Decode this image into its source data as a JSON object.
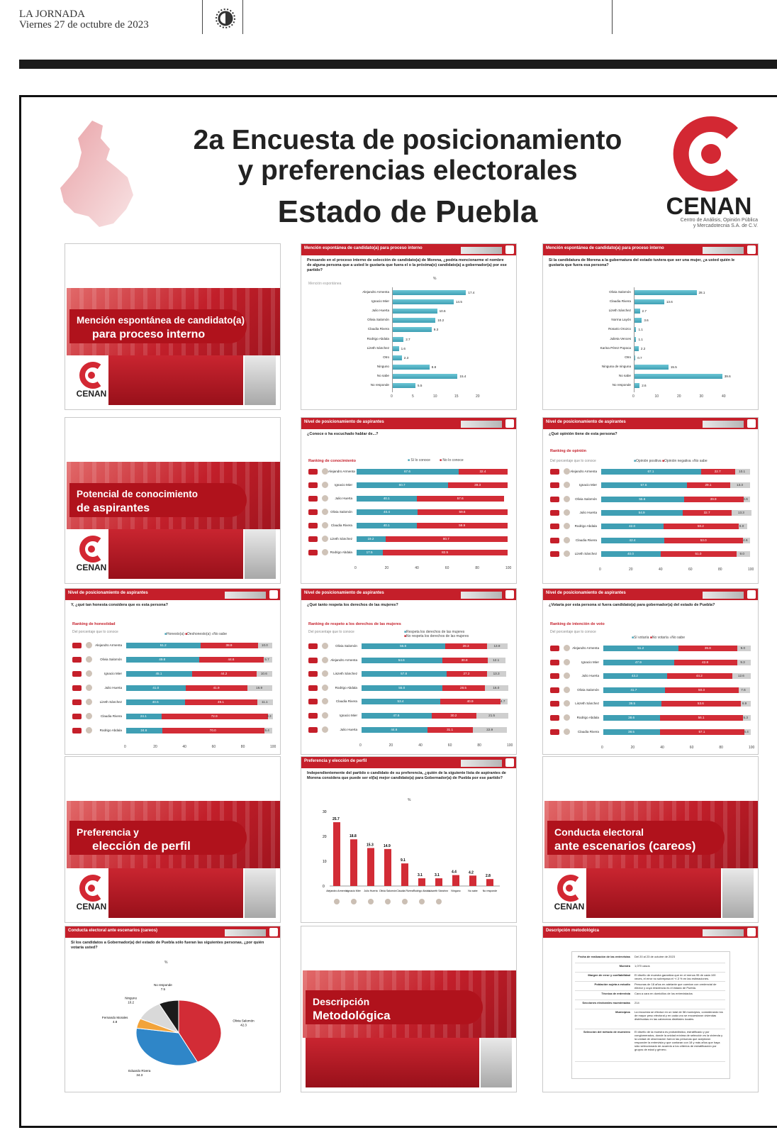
{
  "masthead": {
    "publication": "LA JORNADA",
    "date": "Viernes 27 de octubre de 2023"
  },
  "title": {
    "line1": "2a Encuesta de posicionamiento",
    "line2": "y preferencias electorales",
    "line3": "Estado de Puebla"
  },
  "brand": {
    "name": "CENAN",
    "subtitle_line1": "Centro de Análisis, Opinión Pública",
    "subtitle_line2": "y Mercadotecnia S.A. de C.V."
  },
  "colors": {
    "brand_red": "#c51f2a",
    "teal": "#3f9fb4",
    "gray": "#cfcfcf"
  },
  "section_slides": {
    "s1": {
      "line1": "Mención espontánea de candidato(a)",
      "line2": "para proceso interno"
    },
    "s2": {
      "line1": "Potencial de conocimiento",
      "line2": "de aspirantes"
    },
    "s3": {
      "line1": "Preferencia y",
      "line2": "elección de perfil"
    },
    "s4": {
      "line1": "Conducta electoral",
      "line2": "ante escenarios (careos)"
    },
    "s5": {
      "line1": "Descripción",
      "line2": "Metodológica"
    }
  },
  "slide_mencion_a": {
    "header": "Mención espontánea de candidato(a) para proceso interno",
    "question": "Pensando en el proceso interno de selección de candidato(a) de Morena, ¿podría mencionarme el nombre de alguna persona que a usted le gustaría que fuera el o la próxima(o) candidato(a) a gobernador(a) por ese partido?",
    "sub": "Mención espontánea",
    "unit": "%",
    "chart_data": {
      "type": "bar",
      "orientation": "horizontal",
      "categories": [
        "Alejandro Armenta",
        "Ignacio Mier",
        "Julio Huerta",
        "Olivia Salomón",
        "Claudia Rivera",
        "Rodrigo Abdala",
        "Lizeth Sánchez",
        "Otro",
        "Ninguno",
        "No sabe",
        "No responde"
      ],
      "values": [
        17.4,
        14.5,
        10.6,
        10.2,
        9.3,
        2.7,
        1.6,
        2.3,
        8.8,
        15.4,
        5.5
      ],
      "xlim": [
        0,
        20
      ],
      "xticks": [
        0,
        5,
        10,
        15,
        20
      ]
    }
  },
  "slide_mencion_b": {
    "header": "Mención espontánea de candidato(a) para proceso interno",
    "question": "Si la candidatura de Morena a la gubernatura del estado tuviera que ser una mujer, ¿a usted quién le gustaría que fuera esa persona?",
    "chart_data": {
      "type": "bar",
      "orientation": "horizontal",
      "categories": [
        "Olivia Salomón",
        "Claudia Rivera",
        "Lizeth Sánchez",
        "Norma Layón",
        "Rosario Orozco",
        "Julieta Vences",
        "Karina Pérez Popoca",
        "Otro",
        "Ninguna de ninguna",
        "No sabe",
        "No responde"
      ],
      "values": [
        28.1,
        13.6,
        2.7,
        3.6,
        1.1,
        1.1,
        2.2,
        0.7,
        15.5,
        39.6,
        2.6
      ],
      "xlim": [
        0,
        40
      ]
    }
  },
  "slide_conoc": {
    "header": "Nivel de posicionamiento de aspirantes",
    "question": "¿Conoce o ha escuchado hablar de...?",
    "ranking": "Ranking de conocimiento",
    "legend": [
      "Sí lo conoce",
      "No lo conoce"
    ],
    "chart_data": {
      "type": "bar",
      "stacked": true,
      "categories": [
        "Alejandro Armenta",
        "Ignacio Mier",
        "Julio Huerta",
        "Olivia Salomón",
        "Claudia Rivera",
        "Lizeth Sánchez",
        "Rodrigo Abdala"
      ],
      "series": [
        {
          "name": "Sí lo conoce",
          "values": [
            67.6,
            60.7,
            40.1,
            40.4,
            40.1,
            19.2,
            17.5
          ]
        },
        {
          "name": "No lo conoce",
          "values": [
            32.4,
            39.3,
            57.6,
            59.6,
            59.9,
            80.7,
            82.5
          ]
        }
      ],
      "xticks": [
        0,
        20,
        40,
        60,
        80,
        100
      ]
    }
  },
  "slide_opinion": {
    "header": "Nivel de posicionamiento de aspirantes",
    "question": "¿Qué opinión tiene de esta persona?",
    "ranking": "Ranking de opinión",
    "sub": "Del porcentaje que lo conoce",
    "legend": [
      "Opinión positiva",
      "Opinión negativa",
      "No sabe"
    ],
    "chart_data": {
      "type": "bar",
      "stacked": true,
      "categories": [
        "Alejandro Armenta",
        "Ignacio Mier",
        "Olivia Salomón",
        "Julio Huerta",
        "Rodrigo Abdala",
        "Claudia Rivera",
        "Lizeth Sánchez"
      ],
      "series": [
        {
          "name": "Opinión positiva",
          "values": [
            67.1,
            57.6,
            55.6,
            54.9,
            42.0,
            42.4,
            40.0
          ]
        },
        {
          "name": "Opinión negativa",
          "values": [
            22.7,
            29.1,
            39.9,
            32.7,
            50.2,
            53.0,
            51.0
          ]
        },
        {
          "name": "No sabe",
          "values": [
            10.1,
            13.3,
            4.6,
            13.3,
            6.0,
            4.6,
            9.0
          ]
        }
      ]
    }
  },
  "slide_honestidad": {
    "header": "Nivel de posicionamiento de aspirantes",
    "question": "Y, ¿qué tan honesta considera que es esta persona?",
    "ranking": "Ranking de honestidad",
    "sub": "Del porcentaje que lo conoce",
    "legend": [
      "Honesto(a)",
      "Deshonesto(a)",
      "No sabe"
    ],
    "chart_data": {
      "type": "bar",
      "stacked": true,
      "categories": [
        "Alejandro Armenta",
        "Olivia Salomón",
        "Ignacio Mier",
        "Julio Huerta",
        "Lizeth Sánchez",
        "Claudia Rivera",
        "Rodrigo Abdala"
      ],
      "series": [
        {
          "name": "Honesto(a)",
          "values": [
            51.2,
            49.8,
            45.1,
            41.0,
            40.5,
            24.1,
            24.6
          ]
        },
        {
          "name": "Deshonesto(a)",
          "values": [
            38.9,
            44.6,
            44.2,
            41.9,
            49.1,
            72.9,
            70.0
          ]
        },
        {
          "name": "No sabe",
          "values": [
            10.0,
            5.7,
            10.6,
            16.9,
            11.1,
            3.3,
            5.4
          ]
        }
      ]
    }
  },
  "slide_mujeres": {
    "header": "Nivel de posicionamiento de aspirantes",
    "question": "¿Qué tanto respeta los derechos de las mujeres?",
    "ranking": "Ranking de respeto a los derechos de las mujeres",
    "sub": "Del porcentaje que lo conoce",
    "legend": [
      "Respeta los derechos de las mujeres",
      "No respeta los derechos de las mujeres"
    ],
    "chart_data": {
      "type": "bar",
      "stacked": true,
      "categories": [
        "Olivia Salomón",
        "Alejandro Armenta",
        "Liszeth Sánchez",
        "Rodrigo Abdala",
        "Claudia Rivera",
        "Ignacio Mier",
        "Julio Huerta"
      ],
      "series": [
        {
          "name": "Respeta los derechos de las mujeres",
          "values": [
            56.8,
            54.6,
            57.8,
            55.0,
            53.4,
            47.6,
            44.6
          ]
        },
        {
          "name": "No respeta los derechos de las mujeres",
          "values": [
            28.3,
            30.8,
            27.2,
            28.5,
            40.9,
            30.2,
            31.1
          ]
        },
        {
          "name": "No sabe",
          "values": [
            13.9,
            12.1,
            13.3,
            16.0,
            4.7,
            21.5,
            22.9
          ]
        }
      ]
    }
  },
  "slide_voto": {
    "header": "Nivel de posicionamiento de aspirantes",
    "question": "¿Votaría por esta persona si fuera candidato(a) para gobernador(a) del estado de Puebla?",
    "ranking": "Ranking de intención de voto",
    "sub": "Del porcentaje que lo conoce",
    "legend": [
      "Sí votaría",
      "No votaría",
      "No sabe"
    ],
    "chart_data": {
      "type": "bar",
      "stacked": true,
      "categories": [
        "Alejandro Armenta",
        "Ignacio Mier",
        "Julio Huerta",
        "Olivia Salomón",
        "Liszeth Sánchez",
        "Rodrigo Abdala",
        "Claudia Rivera"
      ],
      "series": [
        {
          "name": "Sí votaría",
          "values": [
            51.2,
            47.9,
            43.2,
            41.7,
            39.5,
            38.6,
            38.5
          ]
        },
        {
          "name": "No votaría",
          "values": [
            39.8,
            42.8,
            44.2,
            50.3,
            53.6,
            56.1,
            57.1
          ]
        },
        {
          "name": "No sabe",
          "values": [
            9.0,
            9.3,
            12.6,
            7.6,
            6.9,
            5.3,
            4.4
          ]
        }
      ]
    }
  },
  "slide_preferencia": {
    "header": "Preferencia y elección de perfil",
    "question": "Independientemente del partido o candidato de su preferencia, ¿quién de la siguiente lista de aspirantes de Morena considera que puede ser el(la) mejor candidato(a) para Gobernador(a) de Puebla por ese partido?",
    "unit": "%",
    "chart_data": {
      "type": "bar",
      "categories": [
        "Alejandro Armenta",
        "Ignacio Mier",
        "Julio Huerta",
        "Olivia Salomón",
        "Claudia Rivera",
        "Rodrigo Abdala",
        "Liszeth Sánchez",
        "Ninguno",
        "No sabe",
        "No responde"
      ],
      "values": [
        25.7,
        18.8,
        15.3,
        14.9,
        9.1,
        3.1,
        3.1,
        4.4,
        4.2,
        2.8
      ],
      "ylim": [
        0,
        30
      ],
      "yticks": [
        0,
        10,
        20,
        30
      ]
    }
  },
  "slide_careos": {
    "header": "Conducta electoral ante escenarios (careos)",
    "question": "Si los candidatos a Gobernador(a) del estado de Puebla sólo fueran las siguientes personas, ¿por quién votaría usted?",
    "unit": "%",
    "chart_data": {
      "type": "pie",
      "categories": [
        "Olivia Salomón",
        "Eduardo Rivera",
        "Fernando Morales",
        "Ninguno",
        "No responde"
      ],
      "values": [
        42.3,
        34.3,
        4.8,
        10.2,
        7.5
      ]
    }
  },
  "slide_metodo": {
    "header": "Descripción metodológica",
    "rows": [
      {
        "k": "Fecha de realización de las entrevistas",
        "v": "Del 20 al 23 de octubre de 2023"
      },
      {
        "k": "Muestra",
        "v": "1,070 casos"
      },
      {
        "k": "Margen de error y confiabilidad",
        "v": "El diseño de muestra garantiza que en el menos 95 de cada 100 veces, el error no sobrepasa el +/-3 % en las estimaciones."
      },
      {
        "k": "Población sujeta a estudio",
        "v": "Personas de 18 años en adelante que cuentan con credencial de elector y cuya residencia es el estado de Puebla."
      },
      {
        "k": "Técnica de entrevista",
        "v": "Cara a cara en domicilios de los entrevistados"
      },
      {
        "k": "Secciones electorales muestreadas",
        "v": "214"
      },
      {
        "k": "Municipios",
        "v": "La encuesta se efectuó en un total de 58 municipios, considerando los de mayor peso electoral y en cada uno se encuestaron viviendas distribuidas en las cabeceras distritales locales."
      },
      {
        "k": "Selección del método de muestreo",
        "v": "El diseño de la muestra es probabilístico, estratificado y por conglomerados, donde la unidad mínima de selección es la vivienda y la unidad de observación fueron las personas que aceptaron responder la entrevista y que contaran con 18 y más años que haya sido seleccionado de acuerdo a los criterios de estratificación por grupos de edad y género."
      }
    ]
  }
}
